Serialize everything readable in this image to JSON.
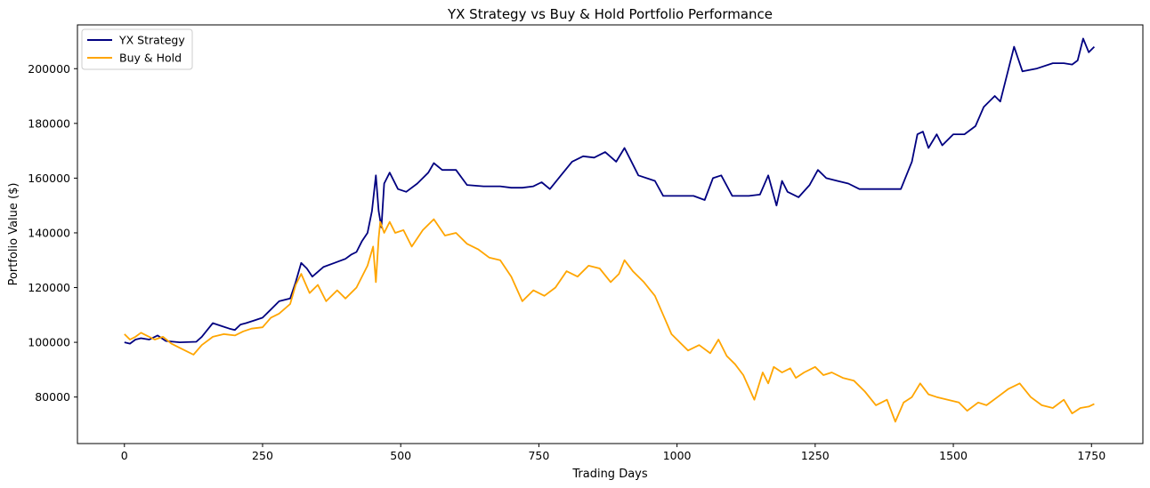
{
  "chart_data": {
    "type": "line",
    "title": "YX Strategy vs Buy & Hold Portfolio Performance",
    "xlabel": "Trading Days",
    "ylabel": "Portfolio Value ($)",
    "xlim": [
      -85,
      1843
    ],
    "ylim": [
      63000,
      216000
    ],
    "xticks": [
      0,
      250,
      500,
      750,
      1000,
      1250,
      1500,
      1750
    ],
    "yticks": [
      80000,
      100000,
      120000,
      140000,
      160000,
      180000,
      200000
    ],
    "grid": false,
    "legend_position": "top-left",
    "series": [
      {
        "name": "YX Strategy",
        "color": "#000080",
        "x": [
          0,
          10,
          20,
          30,
          45,
          60,
          75,
          100,
          130,
          140,
          150,
          160,
          175,
          190,
          200,
          210,
          220,
          235,
          250,
          265,
          280,
          300,
          310,
          320,
          330,
          340,
          360,
          380,
          400,
          410,
          420,
          430,
          440,
          448,
          455,
          460,
          465,
          470,
          480,
          495,
          510,
          530,
          550,
          560,
          575,
          600,
          620,
          650,
          680,
          700,
          720,
          740,
          755,
          770,
          790,
          810,
          830,
          850,
          870,
          890,
          905,
          915,
          930,
          960,
          975,
          990,
          1000,
          1030,
          1050,
          1065,
          1080,
          1100,
          1130,
          1150,
          1165,
          1180,
          1190,
          1200,
          1220,
          1240,
          1255,
          1270,
          1290,
          1310,
          1330,
          1350,
          1370,
          1390,
          1405,
          1415,
          1425,
          1435,
          1445,
          1455,
          1470,
          1480,
          1500,
          1520,
          1540,
          1555,
          1575,
          1585,
          1600,
          1610,
          1625,
          1650,
          1680,
          1700,
          1715,
          1725,
          1735,
          1745,
          1755
        ],
        "values": [
          100000,
          99500,
          101000,
          101500,
          101000,
          102500,
          100500,
          100000,
          100200,
          102000,
          104500,
          107000,
          106000,
          105000,
          104500,
          106500,
          107000,
          108000,
          109000,
          112000,
          115000,
          116000,
          122000,
          129000,
          127000,
          124000,
          127500,
          129000,
          130500,
          132000,
          133000,
          137000,
          140000,
          148000,
          161000,
          148000,
          142000,
          158000,
          162000,
          156000,
          155000,
          158000,
          162000,
          165500,
          163000,
          163000,
          157500,
          157000,
          157000,
          156500,
          156500,
          157000,
          158500,
          156000,
          161000,
          166000,
          168000,
          167500,
          169500,
          166000,
          171000,
          167000,
          161000,
          159000,
          153500,
          153500,
          153500,
          153500,
          152000,
          160000,
          161000,
          153500,
          153500,
          154000,
          161000,
          150000,
          159000,
          155000,
          153000,
          157500,
          163000,
          160000,
          159000,
          158000,
          156000,
          156000,
          156000,
          156000,
          156000,
          161000,
          166000,
          176000,
          177000,
          171000,
          176000,
          172000,
          176000,
          176000,
          179000,
          186000,
          190000,
          188000,
          200000,
          208000,
          199000,
          200000,
          202000,
          202000,
          201500,
          203000,
          211000,
          206000,
          208000
        ]
      },
      {
        "name": "Buy & Hold",
        "color": "#FFA500",
        "x": [
          0,
          10,
          20,
          30,
          40,
          55,
          70,
          85,
          100,
          115,
          125,
          140,
          160,
          180,
          200,
          215,
          230,
          250,
          265,
          280,
          300,
          310,
          320,
          335,
          350,
          365,
          385,
          400,
          420,
          440,
          450,
          455,
          460,
          463,
          470,
          480,
          490,
          505,
          520,
          540,
          560,
          580,
          600,
          620,
          640,
          660,
          680,
          700,
          720,
          740,
          760,
          780,
          800,
          820,
          840,
          860,
          880,
          895,
          905,
          920,
          940,
          960,
          975,
          990,
          1005,
          1020,
          1040,
          1060,
          1075,
          1090,
          1105,
          1120,
          1140,
          1155,
          1165,
          1175,
          1190,
          1205,
          1215,
          1230,
          1250,
          1265,
          1280,
          1300,
          1320,
          1340,
          1360,
          1380,
          1395,
          1410,
          1425,
          1440,
          1455,
          1470,
          1490,
          1510,
          1525,
          1545,
          1560,
          1580,
          1600,
          1620,
          1640,
          1660,
          1680,
          1700,
          1715,
          1730,
          1745,
          1755
        ],
        "values": [
          103000,
          101000,
          102000,
          103500,
          102500,
          101000,
          102000,
          99500,
          98000,
          96500,
          95500,
          99000,
          102000,
          103000,
          102500,
          104000,
          105000,
          105500,
          109000,
          110500,
          114000,
          121000,
          125000,
          118000,
          121000,
          115000,
          119000,
          116000,
          120000,
          128000,
          135000,
          122000,
          138000,
          144000,
          140000,
          144000,
          140000,
          141000,
          135000,
          141000,
          145000,
          139000,
          140000,
          136000,
          134000,
          131000,
          130000,
          124000,
          115000,
          119000,
          117000,
          120000,
          126000,
          124000,
          128000,
          127000,
          122000,
          125000,
          130000,
          126000,
          122000,
          117000,
          110000,
          103000,
          100000,
          97000,
          99000,
          96000,
          101000,
          95000,
          92000,
          88000,
          79000,
          89000,
          85000,
          91000,
          89000,
          90500,
          87000,
          89000,
          91000,
          88000,
          89000,
          87000,
          86000,
          82000,
          77000,
          79000,
          71000,
          78000,
          80000,
          85000,
          81000,
          80000,
          79000,
          78000,
          75000,
          78000,
          77000,
          80000,
          83000,
          85000,
          80000,
          77000,
          76000,
          79000,
          74000,
          76000,
          76500,
          77500
        ]
      }
    ]
  }
}
